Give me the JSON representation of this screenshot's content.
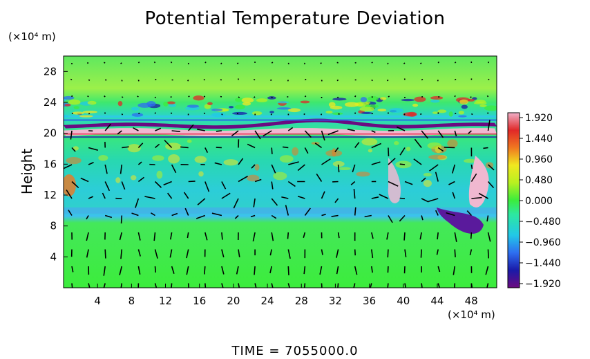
{
  "chart_data": {
    "type": "heatmap",
    "title": "Potential Temperature Deviation",
    "ylabel": "Height",
    "xlabel": "",
    "x_unit": "(×10⁴ m)",
    "y_unit": "(×10⁴ m)",
    "xlim": [
      0,
      51
    ],
    "ylim": [
      0,
      30
    ],
    "x_ticks": [
      "4",
      "8",
      "12",
      "16",
      "20",
      "24",
      "28",
      "32",
      "36",
      "40",
      "44",
      "48"
    ],
    "y_ticks": [
      "4",
      "8",
      "12",
      "16",
      "20",
      "24",
      "28"
    ],
    "colorbar": {
      "range": [
        -1.92,
        1.92
      ],
      "labels": [
        "1.920",
        "1.440",
        "0.960",
        "0.480",
        "0.000",
        "−0.480",
        "−0.960",
        "−1.440",
        "−1.920"
      ]
    },
    "overlay": "wind vectors",
    "bands": [
      {
        "y": 20.5,
        "value": 1.92,
        "description": "warm band"
      },
      {
        "y": 21.2,
        "value": -1.92,
        "description": "cold band"
      },
      {
        "y": 10.0,
        "value": -0.4,
        "description": "cool layer"
      }
    ]
  },
  "footer": {
    "time_label": "TIME  =  7055000.0"
  }
}
